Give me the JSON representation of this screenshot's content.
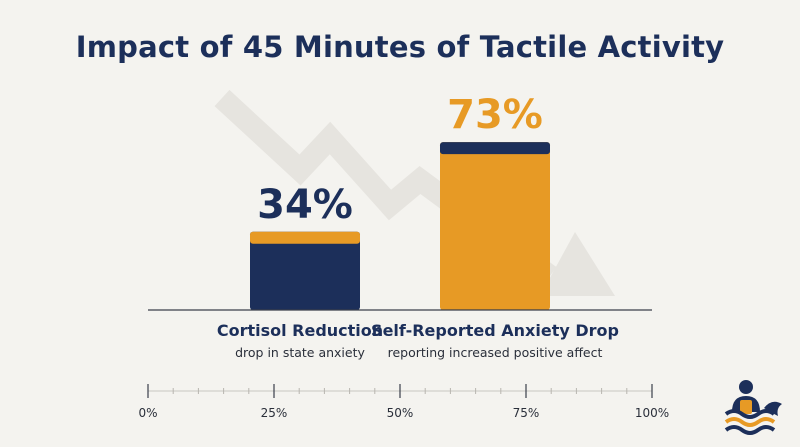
{
  "chart_data": {
    "type": "bar",
    "title": "Impact of 45 Minutes of Tactile Activity",
    "categories": [
      "Cortisol Reduction",
      "Self-Reported Anxiety Drop"
    ],
    "subtitles": [
      "drop in state anxiety",
      "reporting increased positive affect"
    ],
    "values": [
      34,
      73
    ],
    "value_labels": [
      "34%",
      "73%"
    ],
    "bar_colors": [
      "#1c2f5a",
      "#e79a25"
    ],
    "cap_colors": [
      "#e79a25",
      "#1c2f5a"
    ],
    "label_colors": [
      "#1c2f5a",
      "#e79a25"
    ],
    "scale_ticks": [
      "0%",
      "25%",
      "50%",
      "75%",
      "100%"
    ],
    "ylim": [
      0,
      100
    ],
    "grid": false,
    "legend": "none"
  },
  "logo": {
    "icon": "person-waves-logo-icon",
    "colors": [
      "#1c2f5a",
      "#e79a25"
    ]
  }
}
